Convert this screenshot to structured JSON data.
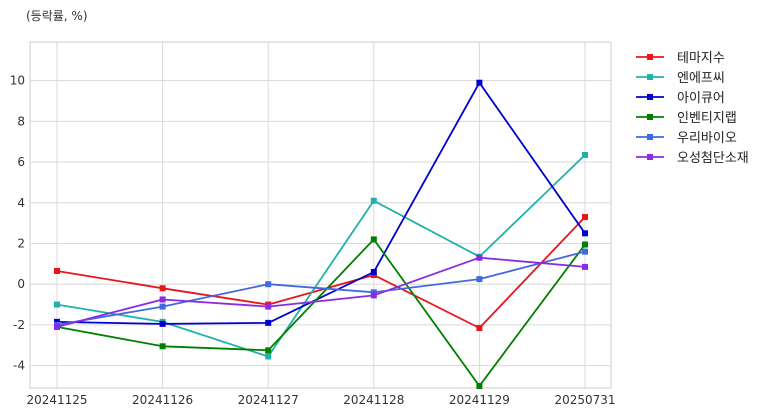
{
  "chart_data": {
    "type": "line",
    "unit_label": "(등락률, %)",
    "title": "",
    "xlabel": "",
    "ylabel": "",
    "x": [
      "20241125",
      "20241126",
      "20241127",
      "20241128",
      "20241129",
      "20250731"
    ],
    "ylim": [
      -5.1,
      11.9
    ],
    "yticks": [
      -4,
      -2,
      0,
      2,
      4,
      6,
      8,
      10
    ],
    "grid": true,
    "legend_position": "outside-right-top",
    "series": [
      {
        "name": "테마지수",
        "color": "#e8151b",
        "values": [
          0.65,
          -0.2,
          -1.0,
          0.45,
          -2.15,
          3.3
        ]
      },
      {
        "name": "엔에프씨",
        "color": "#20b2aa",
        "values": [
          -1.0,
          -1.85,
          -3.55,
          4.1,
          1.35,
          6.35
        ]
      },
      {
        "name": "아이큐어",
        "color": "#0000cd",
        "values": [
          -1.85,
          -1.95,
          -1.9,
          0.6,
          9.9,
          2.5
        ]
      },
      {
        "name": "인벤티지랩",
        "color": "#008000",
        "values": [
          -2.1,
          -3.05,
          -3.25,
          2.2,
          -5.0,
          1.95
        ]
      },
      {
        "name": "우리바이오",
        "color": "#4169e1",
        "values": [
          -2.0,
          -1.1,
          0.0,
          -0.4,
          0.25,
          1.6
        ]
      },
      {
        "name": "오성첨단소재",
        "color": "#8a2be2",
        "values": [
          -2.1,
          -0.75,
          -1.1,
          -0.55,
          1.3,
          0.85
        ]
      }
    ]
  }
}
